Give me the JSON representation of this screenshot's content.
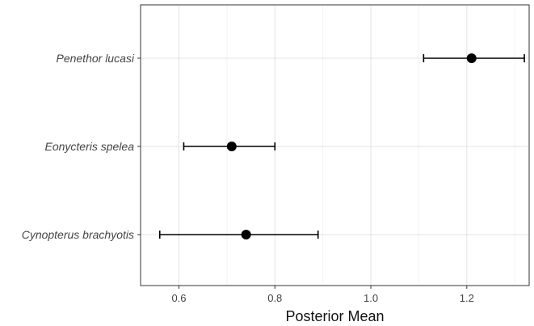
{
  "chart_data": {
    "type": "scatter",
    "title": "",
    "xlabel": "Posterior Mean",
    "ylabel": "",
    "xlim": [
      0.52,
      1.33
    ],
    "x_ticks": [
      0.6,
      0.8,
      1.0,
      1.2
    ],
    "x_tick_labels": [
      "0.6",
      "0.8",
      "1.0",
      "1.2"
    ],
    "categories": [
      "Penethor lucasi",
      "Eonycteris spelea",
      "Cynopterus brachyotis"
    ],
    "series": [
      {
        "values": [
          1.21,
          0.71,
          0.74
        ],
        "lower": [
          1.11,
          0.61,
          0.56
        ],
        "upper": [
          1.32,
          0.8,
          0.89
        ]
      }
    ],
    "grid": true,
    "legend": "none",
    "colors": {
      "point": "#000000",
      "errorbar": "#000000",
      "grid_major": "#e3e3e3",
      "grid_minor": "#f2f2f2",
      "panel_border": "#333333",
      "tick_text": "#444444"
    }
  }
}
